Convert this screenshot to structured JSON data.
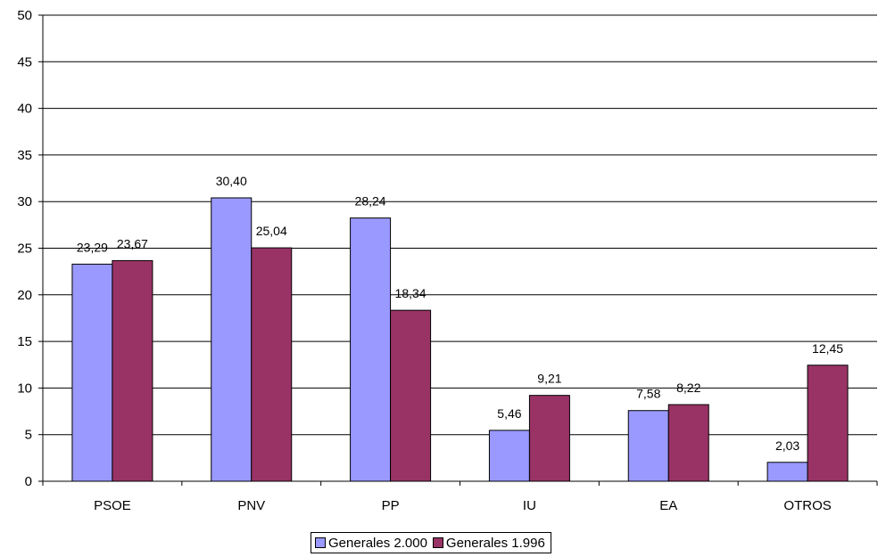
{
  "chart_data": {
    "type": "bar",
    "categories": [
      "PSOE",
      "PNV",
      "PP",
      "IU",
      "EA",
      "OTROS"
    ],
    "series": [
      {
        "name": "Generales 2.000",
        "values": [
          23.29,
          30.4,
          28.24,
          5.46,
          7.58,
          2.03
        ],
        "labels": [
          "23,29",
          "30,40",
          "28,24",
          "5,46",
          "7,58",
          "2,03"
        ],
        "color": "#9999ff"
      },
      {
        "name": "Generales 1.996",
        "values": [
          23.67,
          25.04,
          18.34,
          9.21,
          8.22,
          12.45
        ],
        "labels": [
          "23,67",
          "25,04",
          "18,34",
          "9,21",
          "8,22",
          "12,45"
        ],
        "color": "#993366"
      }
    ],
    "ylim": [
      0,
      50
    ],
    "yticks": [
      0,
      5,
      10,
      15,
      20,
      25,
      30,
      35,
      40,
      45,
      50
    ],
    "grid": true,
    "legend": "bottom",
    "title": "",
    "xlabel": "",
    "ylabel": ""
  }
}
